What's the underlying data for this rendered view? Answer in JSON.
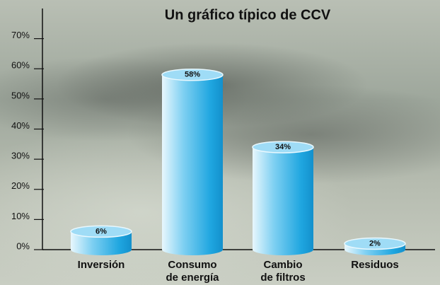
{
  "chart_data": {
    "type": "bar",
    "title": "Un gráfico típico de CCV",
    "categories": [
      [
        "Inversión"
      ],
      [
        "Consumo",
        "de energía"
      ],
      [
        "Cambio",
        "de filtros"
      ],
      [
        "Residuos"
      ]
    ],
    "values": [
      6,
      58,
      34,
      2
    ],
    "value_labels": [
      "6%",
      "58%",
      "34%",
      "2%"
    ],
    "color": "#1fa6e0",
    "ylim": [
      0,
      80
    ],
    "yticks": [
      {
        "value": 0,
        "label": "0%"
      },
      {
        "value": 10,
        "label": "10%"
      },
      {
        "value": 20,
        "label": "20%"
      },
      {
        "value": 30,
        "label": "30%"
      },
      {
        "value": 40,
        "label": "40%"
      },
      {
        "value": 50,
        "label": "50%"
      },
      {
        "value": 60,
        "label": "60%"
      },
      {
        "value": 70,
        "label": "70%"
      }
    ]
  }
}
